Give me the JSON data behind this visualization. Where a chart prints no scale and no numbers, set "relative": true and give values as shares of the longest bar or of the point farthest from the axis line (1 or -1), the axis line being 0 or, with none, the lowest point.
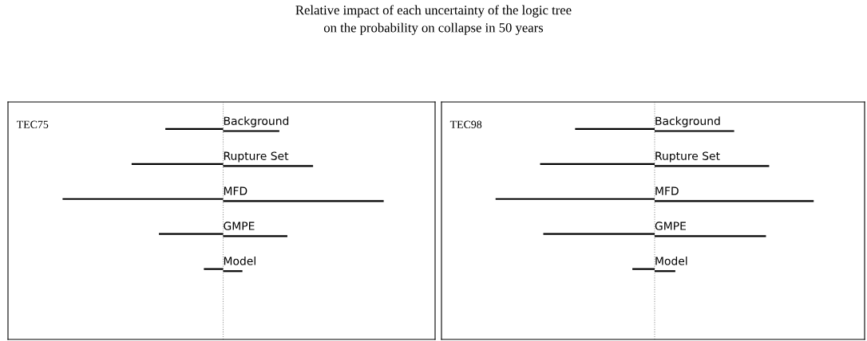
{
  "chart_data": [
    {
      "type": "bar",
      "orientation": "horizontal",
      "relative": true,
      "title": "TEC75",
      "tick_labels": false,
      "annotations": [
        "Relative impact of each uncertainty of the logic tree\non the probability on collapse in 50 years"
      ],
      "categories": [
        "Background",
        "Rupture Set",
        "MFD",
        "GMPE",
        "Model"
      ],
      "series": [
        {
          "color": "#000000",
          "values": [
            -0.36,
            -0.57,
            -1.0,
            -0.4,
            -0.12
          ]
        },
        {
          "color": "#000000",
          "values": [
            0.35,
            0.56,
            1.0,
            0.4,
            0.12
          ]
        }
      ],
      "ref_lines": [
        {
          "axis": "x",
          "value": 0,
          "color": "#999999",
          "line_style": "dotted"
        }
      ]
    },
    {
      "type": "bar",
      "orientation": "horizontal",
      "relative": true,
      "title": "TEC98",
      "tick_labels": false,
      "categories": [
        "Background",
        "Rupture Set",
        "MFD",
        "GMPE",
        "Model"
      ],
      "series": [
        {
          "color": "#000000",
          "values": [
            -0.5,
            -0.72,
            -1.0,
            -0.7,
            -0.14
          ]
        },
        {
          "color": "#000000",
          "values": [
            0.5,
            0.72,
            1.0,
            0.7,
            0.13
          ]
        }
      ],
      "ref_lines": [
        {
          "axis": "x",
          "value": 0,
          "color": "#999999",
          "line_style": "dotted"
        }
      ]
    }
  ]
}
